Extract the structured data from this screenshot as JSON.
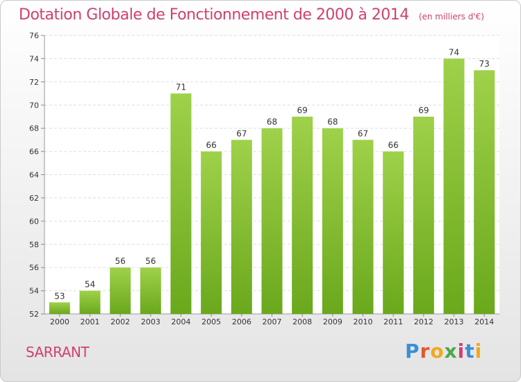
{
  "header": {
    "title": "Dotation Globale de Fonctionnement de 2000 à 2014",
    "subtitle": "(en milliers d'€)"
  },
  "commune": "SARRANT",
  "logo": {
    "text": "Proxiti",
    "colors": [
      "#3a8fd8",
      "#e4572e",
      "#f2a71b",
      "#4aa84a",
      "#d0406f",
      "#3a8fd8",
      "#f2a71b"
    ]
  },
  "colors": {
    "bar_light": "#9fd14a",
    "bar_dark": "#6aa81c",
    "accent": "#d0406f"
  },
  "chart_data": {
    "type": "bar",
    "title": "Dotation Globale de Fonctionnement de 2000 à 2014",
    "subtitle": "(en milliers d'€)",
    "categories": [
      "2000",
      "2001",
      "2002",
      "2003",
      "2004",
      "2005",
      "2006",
      "2007",
      "2008",
      "2009",
      "2010",
      "2011",
      "2012",
      "2013",
      "2014"
    ],
    "values": [
      53,
      54,
      56,
      56,
      71,
      66,
      67,
      68,
      69,
      68,
      67,
      66,
      69,
      74,
      73
    ],
    "xlabel": "",
    "ylabel": "",
    "ylim": [
      52,
      76
    ],
    "yticks": [
      52,
      54,
      56,
      58,
      60,
      62,
      64,
      66,
      68,
      70,
      72,
      74,
      76
    ],
    "grid": true,
    "legend": "none"
  }
}
